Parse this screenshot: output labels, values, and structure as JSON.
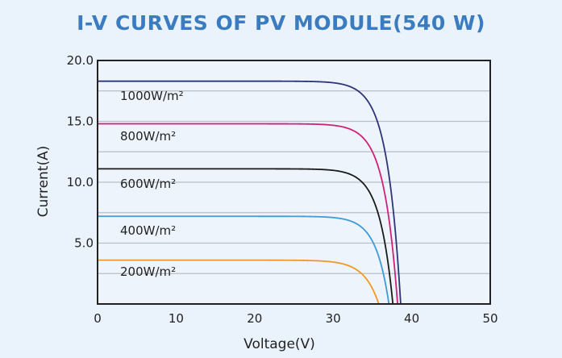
{
  "chart_data": {
    "type": "line",
    "title": "I-V CURVES OF PV MODULE(540 W)",
    "xlabel": "Voltage(V)",
    "ylabel": "Current(A)",
    "xlim": [
      0,
      50
    ],
    "ylim": [
      0,
      20
    ],
    "xticks": [
      "0",
      "10",
      "20",
      "30",
      "40",
      "50"
    ],
    "yticks": [
      "5.0",
      "10.0",
      "15.0",
      "20.0"
    ],
    "grid": true,
    "series": [
      {
        "name": "1000W/m²",
        "isc": 18.3,
        "voc": 38.6,
        "color": "#2e3478"
      },
      {
        "name": "800W/m²",
        "isc": 14.8,
        "voc": 38.2,
        "color": "#d0217a"
      },
      {
        "name": "600W/m²",
        "isc": 11.1,
        "voc": 37.6,
        "color": "#1a1a1a"
      },
      {
        "name": "400W/m²",
        "isc": 7.2,
        "voc": 37.1,
        "color": "#3f9ad6"
      },
      {
        "name": "200W/m²",
        "isc": 3.6,
        "voc": 35.8,
        "color": "#ef9a22"
      }
    ]
  }
}
